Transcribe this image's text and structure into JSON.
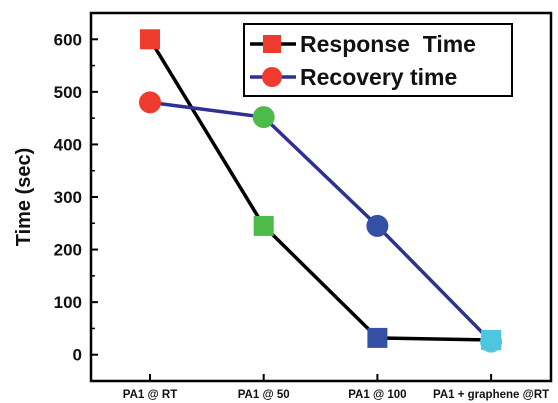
{
  "chart_data": {
    "type": "line",
    "title": "",
    "xlabel": "",
    "ylabel": "Time (sec)",
    "categories": [
      "PA1 @ RT",
      "PA1 @ 50",
      "PA1 @ 100",
      "PA1 + graphene @RT"
    ],
    "ylim": [
      -50,
      650
    ],
    "yticks": [
      0,
      100,
      200,
      300,
      400,
      500,
      600
    ],
    "grid": false,
    "legend_position": "top-right",
    "series": [
      {
        "name": "Response  Time",
        "marker": "square",
        "line_color": "#000000",
        "marker_colors": [
          "#ee3b2e",
          "#4dbb4a",
          "#3450a3",
          "#4ec6e0"
        ],
        "values": [
          600,
          245,
          32,
          28
        ]
      },
      {
        "name": "Recovery time",
        "marker": "circle",
        "line_color": "#2e3192",
        "marker_colors": [
          "#ee3b2e",
          "#4dbb4a",
          "#3450a3",
          "#4ec6e0"
        ],
        "values": [
          480,
          452,
          245,
          25
        ]
      }
    ]
  }
}
